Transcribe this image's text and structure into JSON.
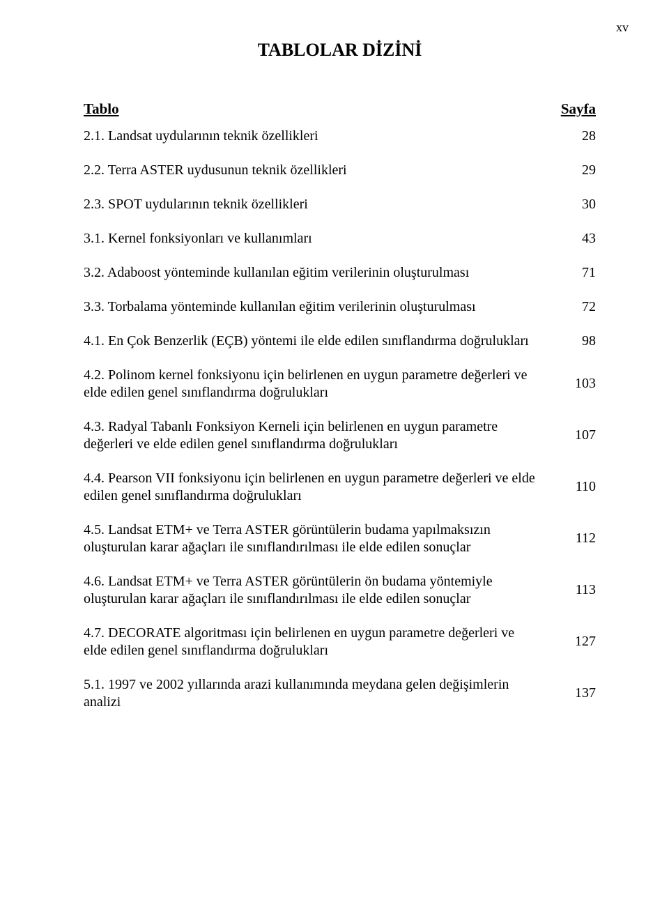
{
  "page_number": "xv",
  "title": "TABLOLAR DİZİNİ",
  "header_left": "Tablo",
  "header_right": "Sayfa",
  "entries": [
    {
      "text": "2.1. Landsat uydularının teknik özellikleri",
      "page": "28",
      "multi": false
    },
    {
      "text": "2.2. Terra ASTER uydusunun teknik özellikleri",
      "page": "29",
      "multi": false
    },
    {
      "text": "2.3. SPOT uydularının teknik özellikleri",
      "page": "30",
      "multi": false
    },
    {
      "text": "3.1. Kernel fonksiyonları ve kullanımları",
      "page": "43",
      "multi": false
    },
    {
      "text": "3.2. Adaboost yönteminde kullanılan eğitim verilerinin oluşturulması",
      "page": "71",
      "multi": false
    },
    {
      "text": "3.3. Torbalama yönteminde kullanılan eğitim verilerinin oluşturulması",
      "page": "72",
      "multi": false
    },
    {
      "text": "4.1. En Çok Benzerlik (EÇB) yöntemi ile elde edilen sınıflandırma doğrulukları",
      "page": "98",
      "multi": true
    },
    {
      "text": "4.2. Polinom kernel fonksiyonu için belirlenen en uygun parametre değerleri ve elde edilen genel sınıflandırma doğrulukları",
      "page": "103",
      "multi": true
    },
    {
      "text": "4.3. Radyal Tabanlı Fonksiyon Kerneli için belirlenen en uygun parametre değerleri ve elde edilen genel sınıflandırma doğrulukları",
      "page": "107",
      "multi": true
    },
    {
      "text": "4.4. Pearson VII fonksiyonu için belirlenen en uygun parametre değerleri ve elde edilen genel sınıflandırma doğrulukları",
      "page": "110",
      "multi": true
    },
    {
      "text": "4.5. Landsat ETM+ ve Terra ASTER görüntülerin budama yapılmaksızın oluşturulan karar ağaçları ile sınıflandırılması ile elde edilen sonuçlar",
      "page": "112",
      "multi": true
    },
    {
      "text": "4.6. Landsat ETM+ ve Terra ASTER görüntülerin ön budama yöntemiyle oluşturulan karar ağaçları ile sınıflandırılması ile elde edilen sonuçlar",
      "page": "113",
      "multi": true
    },
    {
      "text": "4.7. DECORATE algoritması için belirlenen en uygun parametre değerleri ve elde edilen genel sınıflandırma doğrulukları",
      "page": "127",
      "multi": true
    },
    {
      "text": "5.1. 1997 ve 2002 yıllarında arazi kullanımında meydana gelen değişimlerin analizi",
      "page": "137",
      "multi": true
    }
  ]
}
